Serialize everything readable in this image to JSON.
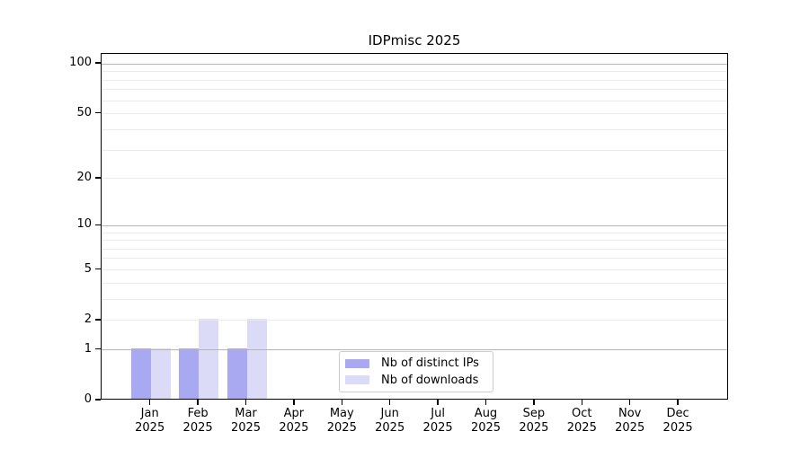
{
  "chart_data": {
    "type": "bar",
    "title": "IDPmisc 2025",
    "categories": [
      "Jan",
      "Feb",
      "Mar",
      "Apr",
      "May",
      "Jun",
      "Jul",
      "Aug",
      "Sep",
      "Oct",
      "Nov",
      "Dec"
    ],
    "year": "2025",
    "series": [
      {
        "name": "Nb of distinct IPs",
        "color": "#a9a9f1",
        "values": [
          1,
          1,
          1,
          0,
          0,
          0,
          0,
          0,
          0,
          0,
          0,
          0
        ]
      },
      {
        "name": "Nb of downloads",
        "color": "#dbdbf8",
        "values": [
          1,
          2,
          2,
          0,
          0,
          0,
          0,
          0,
          0,
          0,
          0,
          0
        ]
      }
    ],
    "yscale": "log1p",
    "ylim": [
      0,
      115
    ],
    "yticks": [
      0,
      1,
      2,
      5,
      10,
      20,
      50,
      100
    ],
    "major_gridlines": [
      1,
      10,
      100
    ],
    "minor_gridlines": [
      2,
      3,
      4,
      5,
      6,
      7,
      8,
      9,
      20,
      30,
      40,
      50,
      60,
      70,
      80,
      90
    ],
    "grid": true,
    "legend_position": "inside-bottom-center"
  },
  "colors": {
    "spine": "#000000",
    "major_grid": "#b5b5b5",
    "minor_grid": "#ebebeb",
    "legend_border": "#cccccc",
    "background": "#ffffff"
  }
}
